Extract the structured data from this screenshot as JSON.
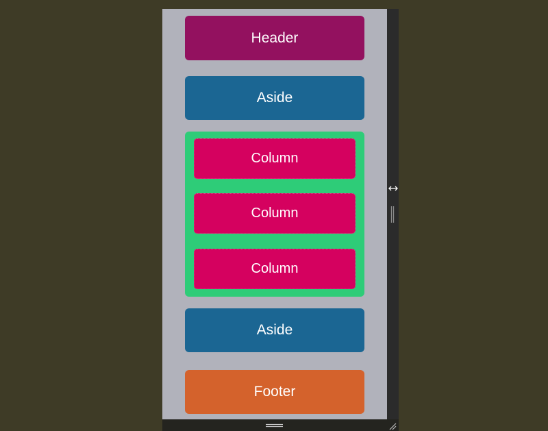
{
  "layout_demo": {
    "header_label": "Header",
    "aside_top_label": "Aside",
    "columns": [
      {
        "label": "Column"
      },
      {
        "label": "Column"
      },
      {
        "label": "Column"
      }
    ],
    "aside_bottom_label": "Aside",
    "footer_label": "Footer"
  },
  "colors": {
    "page_bg": "#3e3b26",
    "viewport_bg": "#b1b2bb",
    "header": "#93115f",
    "aside": "#1b6693",
    "columns_container": "#2ecc78",
    "column": "#d5015f",
    "footer": "#d4622c"
  },
  "icons": {
    "resize_arrow": "horizontal-resize-arrow-icon",
    "vertical_grip": "vertical-grip-icon",
    "horizontal_grip": "horizontal-grip-icon",
    "corner_grip": "corner-resize-grip-icon"
  }
}
